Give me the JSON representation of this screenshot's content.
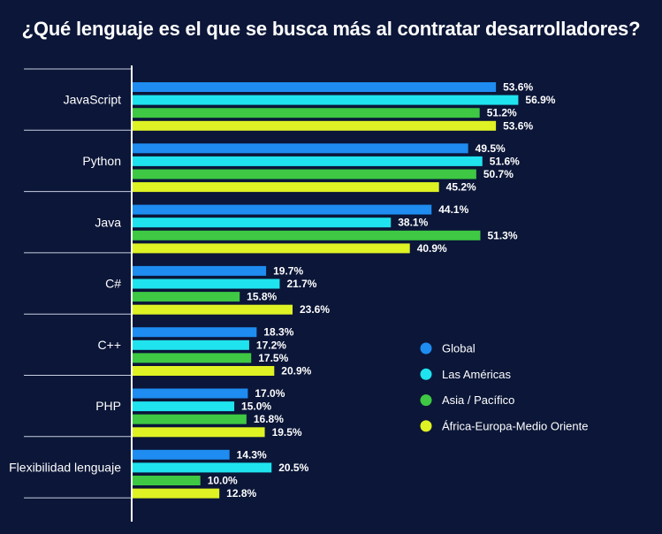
{
  "chart_data": {
    "type": "bar",
    "orientation": "horizontal",
    "title": "¿Qué lenguaje es el que se busca más al contratar desarrolladores?",
    "categories": [
      "JavaScript",
      "Python",
      "Java",
      "C#",
      "C++",
      "PHP",
      "Flexibilidad lenguaje"
    ],
    "series": [
      {
        "name": "Global",
        "color": "#1e8cf0",
        "values": [
          53.6,
          49.5,
          44.1,
          19.7,
          18.3,
          17.0,
          14.3
        ]
      },
      {
        "name": "Las Américas",
        "color": "#1fe3ee",
        "values": [
          56.9,
          51.6,
          38.1,
          21.7,
          17.2,
          15.0,
          20.5
        ]
      },
      {
        "name": "Asia / Pacífico",
        "color": "#3ec843",
        "values": [
          51.2,
          50.7,
          51.3,
          15.8,
          17.5,
          16.8,
          10.0
        ]
      },
      {
        "name": "África-Europa-Medio Oriente",
        "color": "#dff224",
        "values": [
          53.6,
          45.2,
          40.9,
          23.6,
          20.9,
          19.5,
          12.8
        ]
      }
    ],
    "value_suffix": "%",
    "legend_position": "right",
    "grid": false
  }
}
